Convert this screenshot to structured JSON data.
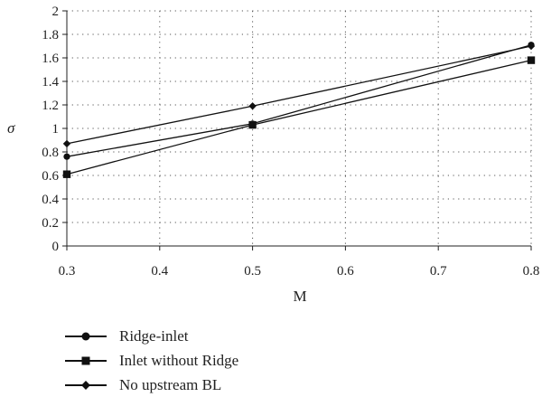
{
  "chart_data": {
    "type": "line",
    "xlabel": "M",
    "ylabel": "σ",
    "xlim": [
      0.3,
      0.8
    ],
    "ylim": [
      0,
      2
    ],
    "xticks": [
      "0.3",
      "0.4",
      "0.5",
      "0.6",
      "0.7",
      "0.8"
    ],
    "yticks": [
      "0",
      "0.2",
      "0.4",
      "0.6",
      "0.8",
      "1",
      "1.2",
      "1.4",
      "1.6",
      "1.8",
      "2"
    ],
    "grid": true,
    "legend_position": "bottom-left",
    "x": [
      0.3,
      0.5,
      0.8
    ],
    "series": [
      {
        "name": "Ridge-inlet",
        "marker": "circle",
        "values": [
          0.76,
          1.04,
          1.71
        ]
      },
      {
        "name": "Inlet without Ridge",
        "marker": "square",
        "values": [
          0.61,
          1.03,
          1.58
        ]
      },
      {
        "name": "No upstream BL",
        "marker": "diamond",
        "values": [
          0.87,
          1.19,
          1.7
        ]
      }
    ],
    "line_color": "#111111"
  }
}
